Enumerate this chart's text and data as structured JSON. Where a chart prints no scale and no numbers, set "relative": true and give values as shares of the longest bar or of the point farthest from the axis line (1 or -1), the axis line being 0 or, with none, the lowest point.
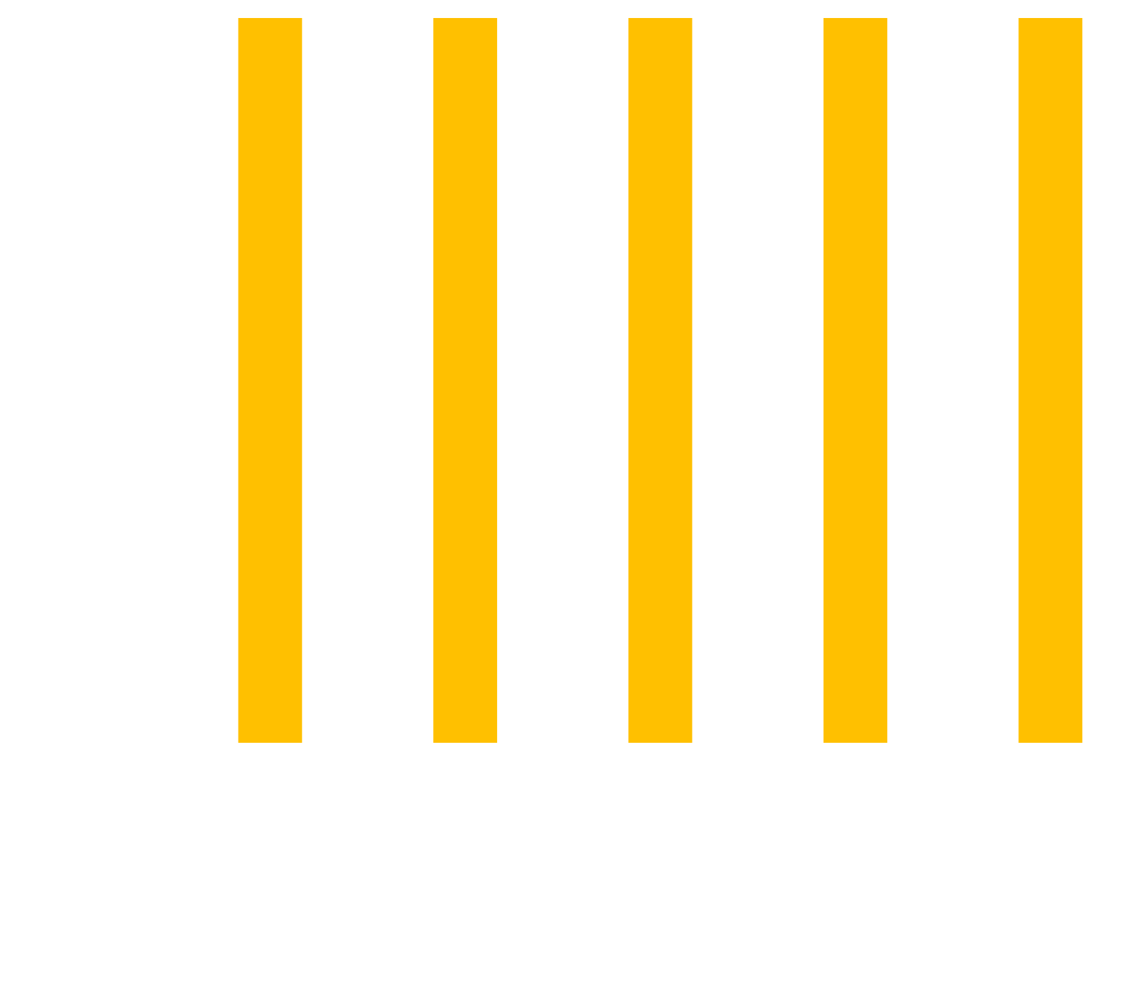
{
  "chart_data": {
    "type": "bar",
    "relative": true,
    "categories": [
      null,
      null,
      null,
      null,
      null
    ],
    "values": [
      1,
      1,
      1,
      1,
      1
    ],
    "color": "#ffc000"
  }
}
